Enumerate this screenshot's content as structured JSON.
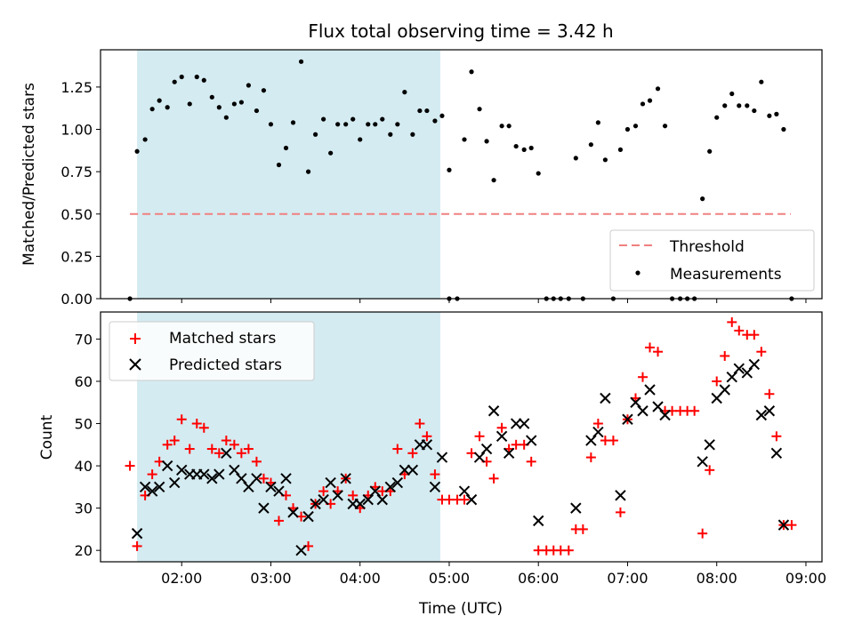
{
  "title": "Flux total observing time = 3.42 h",
  "colors": {
    "shade": "#d4ebf1",
    "threshold": "#f08080",
    "matched": "#ff0000",
    "predicted": "#000000",
    "measurement": "#000000"
  },
  "chart_data": [
    {
      "type": "scatter",
      "ylabel": "Matched/Predicted stars",
      "ylim": [
        0,
        1.47
      ],
      "yticks": [
        "0.00",
        "0.25",
        "0.50",
        "0.75",
        "1.00",
        "1.25"
      ],
      "xlim": [
        1.09,
        9.18
      ],
      "shaded_x_range": [
        1.5,
        4.9
      ],
      "threshold": {
        "label": "Threshold",
        "y": 0.5,
        "x_range": [
          1.42,
          8.83
        ]
      },
      "legend": {
        "entries": [
          "Threshold",
          "Measurements"
        ],
        "placement": "lower right"
      },
      "series": [
        {
          "name": "Measurements",
          "marker": "dot",
          "points": [
            [
              1.42,
              0.0
            ],
            [
              1.5,
              0.87
            ],
            [
              1.59,
              0.94
            ],
            [
              1.67,
              1.12
            ],
            [
              1.75,
              1.17
            ],
            [
              1.84,
              1.13
            ],
            [
              1.92,
              1.28
            ],
            [
              2.0,
              1.31
            ],
            [
              2.09,
              1.15
            ],
            [
              2.17,
              1.31
            ],
            [
              2.25,
              1.29
            ],
            [
              2.34,
              1.19
            ],
            [
              2.42,
              1.13
            ],
            [
              2.5,
              1.07
            ],
            [
              2.59,
              1.15
            ],
            [
              2.67,
              1.16
            ],
            [
              2.75,
              1.26
            ],
            [
              2.84,
              1.11
            ],
            [
              2.92,
              1.23
            ],
            [
              3.0,
              1.03
            ],
            [
              3.09,
              0.79
            ],
            [
              3.17,
              0.89
            ],
            [
              3.25,
              1.04
            ],
            [
              3.34,
              1.4
            ],
            [
              3.42,
              0.75
            ],
            [
              3.5,
              0.97
            ],
            [
              3.59,
              1.06
            ],
            [
              3.67,
              0.86
            ],
            [
              3.75,
              1.03
            ],
            [
              3.84,
              1.03
            ],
            [
              3.92,
              1.06
            ],
            [
              4.0,
              0.94
            ],
            [
              4.09,
              1.03
            ],
            [
              4.17,
              1.03
            ],
            [
              4.25,
              1.06
            ],
            [
              4.34,
              0.97
            ],
            [
              4.42,
              1.03
            ],
            [
              4.5,
              1.22
            ],
            [
              4.59,
              0.97
            ],
            [
              4.67,
              1.11
            ],
            [
              4.75,
              1.11
            ],
            [
              4.84,
              1.05
            ],
            [
              4.92,
              1.08
            ],
            [
              5.0,
              0.76
            ],
            [
              5.0,
              0.0
            ],
            [
              5.09,
              0.0
            ],
            [
              5.17,
              0.94
            ],
            [
              5.25,
              1.34
            ],
            [
              5.34,
              1.12
            ],
            [
              5.42,
              0.93
            ],
            [
              5.5,
              0.7
            ],
            [
              5.59,
              1.02
            ],
            [
              5.67,
              1.02
            ],
            [
              5.75,
              0.9
            ],
            [
              5.84,
              0.88
            ],
            [
              5.92,
              0.89
            ],
            [
              6.0,
              0.74
            ],
            [
              6.09,
              0.0
            ],
            [
              6.17,
              0.0
            ],
            [
              6.25,
              0.0
            ],
            [
              6.34,
              0.0
            ],
            [
              6.42,
              0.83
            ],
            [
              6.5,
              0.0
            ],
            [
              6.59,
              0.91
            ],
            [
              6.67,
              1.04
            ],
            [
              6.75,
              0.82
            ],
            [
              6.84,
              0.0
            ],
            [
              6.92,
              0.88
            ],
            [
              7.0,
              1.0
            ],
            [
              7.09,
              1.02
            ],
            [
              7.17,
              1.15
            ],
            [
              7.25,
              1.17
            ],
            [
              7.34,
              1.24
            ],
            [
              7.42,
              1.02
            ],
            [
              7.5,
              0.0
            ],
            [
              7.59,
              0.0
            ],
            [
              7.67,
              0.0
            ],
            [
              7.75,
              0.0
            ],
            [
              7.84,
              0.59
            ],
            [
              7.92,
              0.87
            ],
            [
              8.0,
              1.07
            ],
            [
              8.09,
              1.14
            ],
            [
              8.17,
              1.21
            ],
            [
              8.25,
              1.14
            ],
            [
              8.34,
              1.14
            ],
            [
              8.42,
              1.11
            ],
            [
              8.5,
              1.28
            ],
            [
              8.59,
              1.08
            ],
            [
              8.67,
              1.09
            ],
            [
              8.75,
              1.0
            ],
            [
              8.84,
              0.0
            ]
          ]
        }
      ]
    },
    {
      "type": "scatter",
      "ylabel": "Count",
      "xlabel": "Time (UTC)",
      "ylim": [
        17.3,
        76.4
      ],
      "yticks": [
        "20",
        "30",
        "40",
        "50",
        "60",
        "70"
      ],
      "xlim": [
        1.09,
        9.18
      ],
      "xticks": [
        "02:00",
        "03:00",
        "04:00",
        "05:00",
        "06:00",
        "07:00",
        "08:00",
        "09:00"
      ],
      "shaded_x_range": [
        1.5,
        4.9
      ],
      "legend": {
        "entries": [
          "Matched stars",
          "Predicted stars"
        ],
        "placement": "upper left"
      },
      "series": [
        {
          "name": "Matched stars",
          "marker": "plus",
          "points": [
            [
              1.42,
              40
            ],
            [
              1.5,
              21
            ],
            [
              1.59,
              33
            ],
            [
              1.67,
              38
            ],
            [
              1.75,
              41
            ],
            [
              1.84,
              45
            ],
            [
              1.92,
              46
            ],
            [
              2.0,
              51
            ],
            [
              2.09,
              44
            ],
            [
              2.17,
              50
            ],
            [
              2.25,
              49
            ],
            [
              2.34,
              44
            ],
            [
              2.42,
              43
            ],
            [
              2.5,
              46
            ],
            [
              2.59,
              45
            ],
            [
              2.67,
              43
            ],
            [
              2.75,
              44
            ],
            [
              2.84,
              41
            ],
            [
              2.92,
              37
            ],
            [
              3.0,
              36
            ],
            [
              3.09,
              27
            ],
            [
              3.17,
              33
            ],
            [
              3.25,
              30
            ],
            [
              3.34,
              28
            ],
            [
              3.42,
              21
            ],
            [
              3.5,
              31
            ],
            [
              3.59,
              34
            ],
            [
              3.67,
              31
            ],
            [
              3.75,
              34
            ],
            [
              3.84,
              37
            ],
            [
              3.92,
              33
            ],
            [
              4.0,
              30
            ],
            [
              4.09,
              33
            ],
            [
              4.17,
              35
            ],
            [
              4.25,
              34
            ],
            [
              4.34,
              34
            ],
            [
              4.42,
              44
            ],
            [
              4.5,
              38
            ],
            [
              4.59,
              43
            ],
            [
              4.67,
              50
            ],
            [
              4.75,
              47
            ],
            [
              4.84,
              38
            ],
            [
              4.92,
              32
            ],
            [
              5.0,
              32
            ],
            [
              5.09,
              32
            ],
            [
              5.17,
              32
            ],
            [
              5.25,
              43
            ],
            [
              5.34,
              47
            ],
            [
              5.42,
              41
            ],
            [
              5.5,
              37
            ],
            [
              5.59,
              49
            ],
            [
              5.67,
              44
            ],
            [
              5.75,
              45
            ],
            [
              5.84,
              45
            ],
            [
              5.92,
              41
            ],
            [
              6.0,
              20
            ],
            [
              6.09,
              20
            ],
            [
              6.17,
              20
            ],
            [
              6.25,
              20
            ],
            [
              6.34,
              20
            ],
            [
              6.42,
              25
            ],
            [
              6.5,
              25
            ],
            [
              6.59,
              42
            ],
            [
              6.67,
              50
            ],
            [
              6.75,
              46
            ],
            [
              6.84,
              46
            ],
            [
              6.92,
              29
            ],
            [
              7.0,
              51
            ],
            [
              7.09,
              56
            ],
            [
              7.17,
              61
            ],
            [
              7.25,
              68
            ],
            [
              7.34,
              67
            ],
            [
              7.42,
              53
            ],
            [
              7.5,
              53
            ],
            [
              7.59,
              53
            ],
            [
              7.67,
              53
            ],
            [
              7.75,
              53
            ],
            [
              7.84,
              24
            ],
            [
              7.92,
              39
            ],
            [
              8.0,
              60
            ],
            [
              8.09,
              66
            ],
            [
              8.17,
              74
            ],
            [
              8.25,
              72
            ],
            [
              8.34,
              71
            ],
            [
              8.42,
              71
            ],
            [
              8.5,
              67
            ],
            [
              8.59,
              57
            ],
            [
              8.67,
              47
            ],
            [
              8.75,
              26
            ],
            [
              8.84,
              26
            ]
          ]
        },
        {
          "name": "Predicted stars",
          "marker": "x",
          "points": [
            [
              1.5,
              24
            ],
            [
              1.59,
              35
            ],
            [
              1.67,
              34
            ],
            [
              1.75,
              35
            ],
            [
              1.84,
              40
            ],
            [
              1.92,
              36
            ],
            [
              2.0,
              39
            ],
            [
              2.09,
              38
            ],
            [
              2.17,
              38
            ],
            [
              2.25,
              38
            ],
            [
              2.34,
              37
            ],
            [
              2.42,
              38
            ],
            [
              2.5,
              43
            ],
            [
              2.59,
              39
            ],
            [
              2.67,
              37
            ],
            [
              2.75,
              35
            ],
            [
              2.84,
              37
            ],
            [
              2.92,
              30
            ],
            [
              3.0,
              35
            ],
            [
              3.09,
              34
            ],
            [
              3.17,
              37
            ],
            [
              3.25,
              29
            ],
            [
              3.34,
              20
            ],
            [
              3.42,
              28
            ],
            [
              3.5,
              31
            ],
            [
              3.59,
              32
            ],
            [
              3.67,
              36
            ],
            [
              3.75,
              33
            ],
            [
              3.84,
              37
            ],
            [
              3.92,
              31
            ],
            [
              4.0,
              31
            ],
            [
              4.09,
              32
            ],
            [
              4.17,
              34
            ],
            [
              4.25,
              32
            ],
            [
              4.34,
              35
            ],
            [
              4.42,
              36
            ],
            [
              4.5,
              39
            ],
            [
              4.59,
              39
            ],
            [
              4.67,
              45
            ],
            [
              4.75,
              45
            ],
            [
              4.84,
              35
            ],
            [
              4.92,
              42
            ],
            [
              5.17,
              34
            ],
            [
              5.25,
              32
            ],
            [
              5.34,
              42
            ],
            [
              5.42,
              44
            ],
            [
              5.5,
              53
            ],
            [
              5.59,
              47
            ],
            [
              5.67,
              43
            ],
            [
              5.75,
              50
            ],
            [
              5.84,
              50
            ],
            [
              5.92,
              46
            ],
            [
              6.0,
              27
            ],
            [
              6.42,
              30
            ],
            [
              6.59,
              46
            ],
            [
              6.67,
              48
            ],
            [
              6.75,
              56
            ],
            [
              6.92,
              33
            ],
            [
              7.0,
              51
            ],
            [
              7.09,
              55
            ],
            [
              7.17,
              53
            ],
            [
              7.25,
              58
            ],
            [
              7.34,
              54
            ],
            [
              7.42,
              52
            ],
            [
              7.84,
              41
            ],
            [
              7.92,
              45
            ],
            [
              8.0,
              56
            ],
            [
              8.09,
              58
            ],
            [
              8.17,
              61
            ],
            [
              8.25,
              63
            ],
            [
              8.34,
              62
            ],
            [
              8.42,
              64
            ],
            [
              8.5,
              52
            ],
            [
              8.59,
              53
            ],
            [
              8.67,
              43
            ],
            [
              8.75,
              26
            ]
          ]
        }
      ]
    }
  ]
}
